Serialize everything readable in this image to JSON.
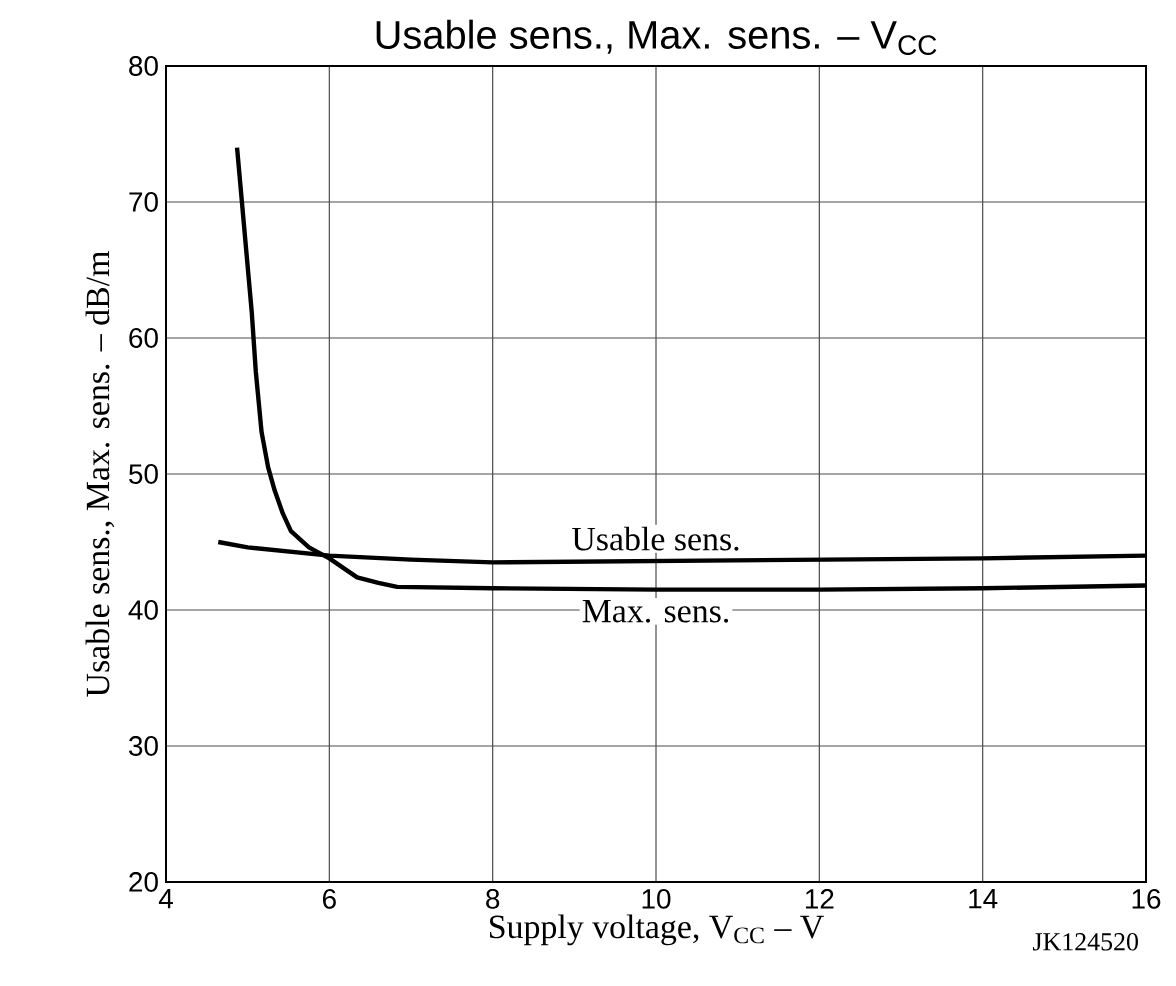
{
  "chart_data": {
    "type": "line",
    "title": "Usable sens., Max. sens. – V$_{CC}$",
    "xlabel": "Supply voltage, V$_{CC}$ – V",
    "ylabel": "Usable sens., Max. sens. – dB/m",
    "x": [
      4.64,
      5.0,
      6.0,
      7.0,
      8.0,
      10.0,
      12.0,
      14.0,
      16.0
    ],
    "series": [
      {
        "name": "Usable sens.",
        "color": "#000000",
        "values": [
          45.0,
          44.6,
          44.0,
          43.7,
          43.5,
          43.6,
          43.7,
          43.8,
          44.0
        ]
      },
      {
        "name": "Max. sens.",
        "color": "#000000",
        "x": [
          4.87,
          5.05,
          5.1,
          5.17,
          5.25,
          5.33,
          5.43,
          5.53,
          5.75,
          6.0,
          6.34,
          6.6,
          6.83,
          8.0,
          10.0,
          12.0,
          14.0,
          16.0
        ],
        "values": [
          74.0,
          61.9,
          57.5,
          53.1,
          50.5,
          48.8,
          47.1,
          45.8,
          44.6,
          43.8,
          42.4,
          42.0,
          41.7,
          41.6,
          41.5,
          41.5,
          41.6,
          41.8
        ]
      }
    ],
    "xlim": [
      4,
      16
    ],
    "ylim": [
      20,
      80
    ],
    "xticks": [
      4,
      6,
      8,
      10,
      12,
      14,
      16
    ],
    "yticks": [
      20,
      30,
      40,
      50,
      60,
      70,
      80
    ],
    "grid": true,
    "marker": "none",
    "line_style": "solid",
    "annotations": [
      "JK124520"
    ]
  }
}
